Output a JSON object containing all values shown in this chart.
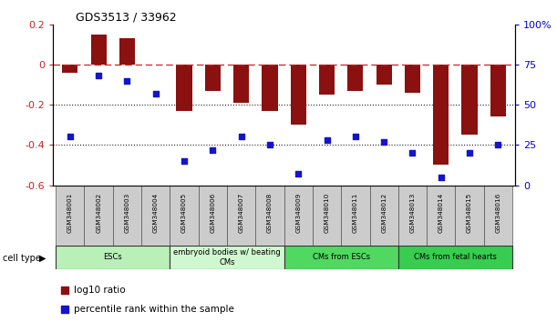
{
  "title": "GDS3513 / 33962",
  "samples": [
    "GSM348001",
    "GSM348002",
    "GSM348003",
    "GSM348004",
    "GSM348005",
    "GSM348006",
    "GSM348007",
    "GSM348008",
    "GSM348009",
    "GSM348010",
    "GSM348011",
    "GSM348012",
    "GSM348013",
    "GSM348014",
    "GSM348015",
    "GSM348016"
  ],
  "log10_ratio": [
    -0.04,
    0.15,
    0.13,
    0.0,
    -0.23,
    -0.13,
    -0.19,
    -0.23,
    -0.3,
    -0.15,
    -0.13,
    -0.1,
    -0.14,
    -0.5,
    -0.35,
    -0.26
  ],
  "percentile_rank": [
    30,
    68,
    65,
    57,
    15,
    22,
    30,
    25,
    7,
    28,
    30,
    27,
    20,
    5,
    20,
    25
  ],
  "cell_type_groups": [
    {
      "label": "ESCs",
      "start": 0,
      "end": 4,
      "color": "#b8f0b8"
    },
    {
      "label": "embryoid bodies w/ beating\nCMs",
      "start": 4,
      "end": 8,
      "color": "#d0f8d0"
    },
    {
      "label": "CMs from ESCs",
      "start": 8,
      "end": 12,
      "color": "#50d860"
    },
    {
      "label": "CMs from fetal hearts",
      "start": 12,
      "end": 16,
      "color": "#38cc50"
    }
  ],
  "bar_color": "#8B1010",
  "square_color": "#1414CC",
  "ref_line_color": "#CC2222",
  "dotted_line_color": "#222222",
  "ylim_left": [
    -0.6,
    0.2
  ],
  "ylim_right": [
    0,
    100
  ],
  "yticks_left": [
    -0.6,
    -0.4,
    -0.2,
    0.0,
    0.2
  ],
  "yticks_right": [
    0,
    25,
    50,
    75,
    100
  ],
  "bar_width": 0.55,
  "legend_items": [
    {
      "label": "log10 ratio",
      "color": "#8B1010"
    },
    {
      "label": "percentile rank within the sample",
      "color": "#1414CC"
    }
  ]
}
